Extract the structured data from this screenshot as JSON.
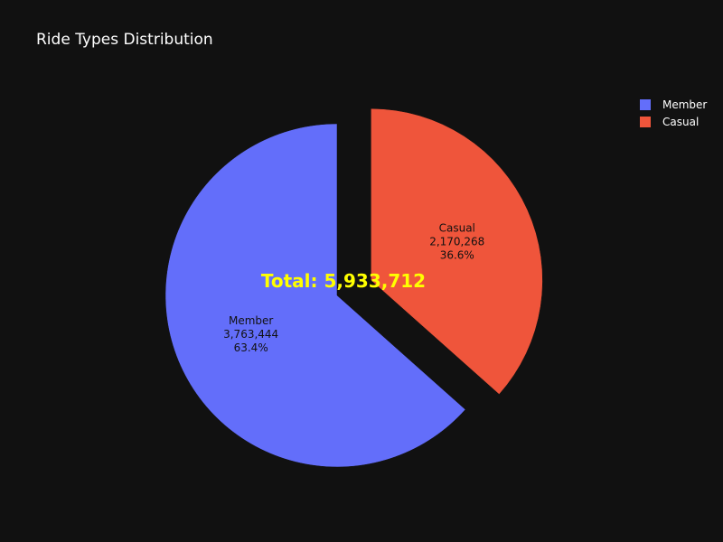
{
  "chart_data": {
    "type": "pie",
    "title": "Ride Types Distribution",
    "slices": [
      {
        "label": "Member",
        "value": 3763444,
        "value_text": "3,763,444",
        "percent_text": "63.4%",
        "color": "#636efa",
        "pulled": false
      },
      {
        "label": "Casual",
        "value": 2170268,
        "value_text": "2,170,268",
        "percent_text": "36.6%",
        "color": "#ef553b",
        "pulled": true
      }
    ],
    "center_annotation": "Total: 5,933,712",
    "center_annotation_color": "#ffff00",
    "legend": {
      "placement": "top-right",
      "items": [
        "Member",
        "Casual"
      ]
    },
    "background": "#111111",
    "text_color": "#ffffff"
  }
}
